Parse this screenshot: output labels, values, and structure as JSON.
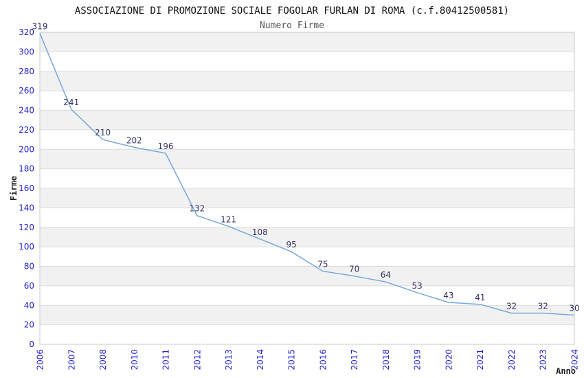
{
  "chart_data": {
    "type": "line",
    "title": "ASSOCIAZIONE DI PROMOZIONE SOCIALE FOGOLAR FURLAN DI ROMA (c.f.80412500581)",
    "subtitle": "Numero Firme",
    "xlabel": "Anno",
    "ylabel": "Firme",
    "categories": [
      "2006",
      "2007",
      "2008",
      "2010",
      "2011",
      "2012",
      "2013",
      "2014",
      "2015",
      "2016",
      "2017",
      "2018",
      "2019",
      "2020",
      "2021",
      "2022",
      "2023",
      "2024"
    ],
    "values": [
      319,
      241,
      210,
      202,
      196,
      132,
      121,
      108,
      95,
      75,
      70,
      64,
      53,
      43,
      41,
      32,
      32,
      30
    ],
    "data_labels_shown": true,
    "ylim": [
      0,
      320
    ],
    "ytick_step": 20,
    "grid": true,
    "legend_position": "none",
    "colors": {
      "line": "#74a7dc",
      "data_label": "#333366",
      "tick_label": "#2222cc",
      "band_gray": "#f1f1f1",
      "grid_line": "#dcdcdc",
      "plot_border": "#c8c8c8",
      "title": "#111111",
      "subtitle": "#555555",
      "axis_title": "#222222",
      "background": "#ffffff"
    }
  }
}
